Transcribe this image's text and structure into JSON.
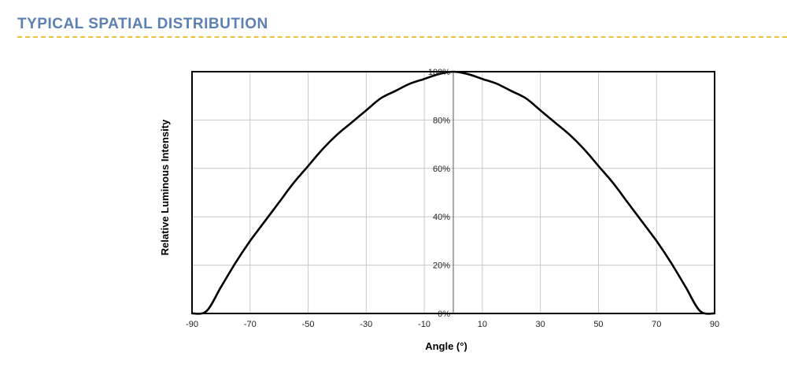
{
  "header": {
    "title": "TYPICAL SPATIAL DISTRIBUTION"
  },
  "colors": {
    "title": "#5b80b2",
    "rule": "#e8c33a",
    "curve": "#000000",
    "grid": "#c8c8c8"
  },
  "chart_data": {
    "type": "line",
    "title": "",
    "xlabel": "Angle (°)",
    "ylabel": "Relative Luminous Intensity",
    "xlim": [
      -90,
      90
    ],
    "ylim": [
      0,
      100
    ],
    "xticks": [
      -90,
      -70,
      -50,
      -30,
      -10,
      10,
      30,
      50,
      70,
      90
    ],
    "xtick_labels": [
      "-90",
      "-70",
      "-50",
      "-30",
      "-10",
      "10",
      "30",
      "50",
      "70",
      "90"
    ],
    "yticks": [
      0,
      20,
      40,
      60,
      80,
      100
    ],
    "ytick_labels": [
      "0%",
      "20%",
      "40%",
      "60%",
      "80%",
      "100%"
    ],
    "grid": true,
    "legend": "none",
    "series": [
      {
        "x": [
          -90,
          -85,
          -80,
          -75,
          -70,
          -65,
          -60,
          -55,
          -50,
          -45,
          -40,
          -35,
          -30,
          -25,
          -20,
          -15,
          -10,
          -5,
          0,
          5,
          10,
          15,
          20,
          25,
          30,
          35,
          40,
          45,
          50,
          55,
          60,
          65,
          70,
          75,
          80,
          85,
          90
        ],
        "values": [
          0,
          1,
          11,
          21,
          30,
          38,
          46,
          54,
          61,
          68,
          74,
          79,
          84,
          89,
          92,
          95,
          97,
          99,
          100,
          99,
          97,
          95,
          92,
          89,
          84,
          79,
          74,
          68,
          61,
          54,
          46,
          38,
          30,
          21,
          11,
          1,
          0
        ]
      }
    ]
  }
}
